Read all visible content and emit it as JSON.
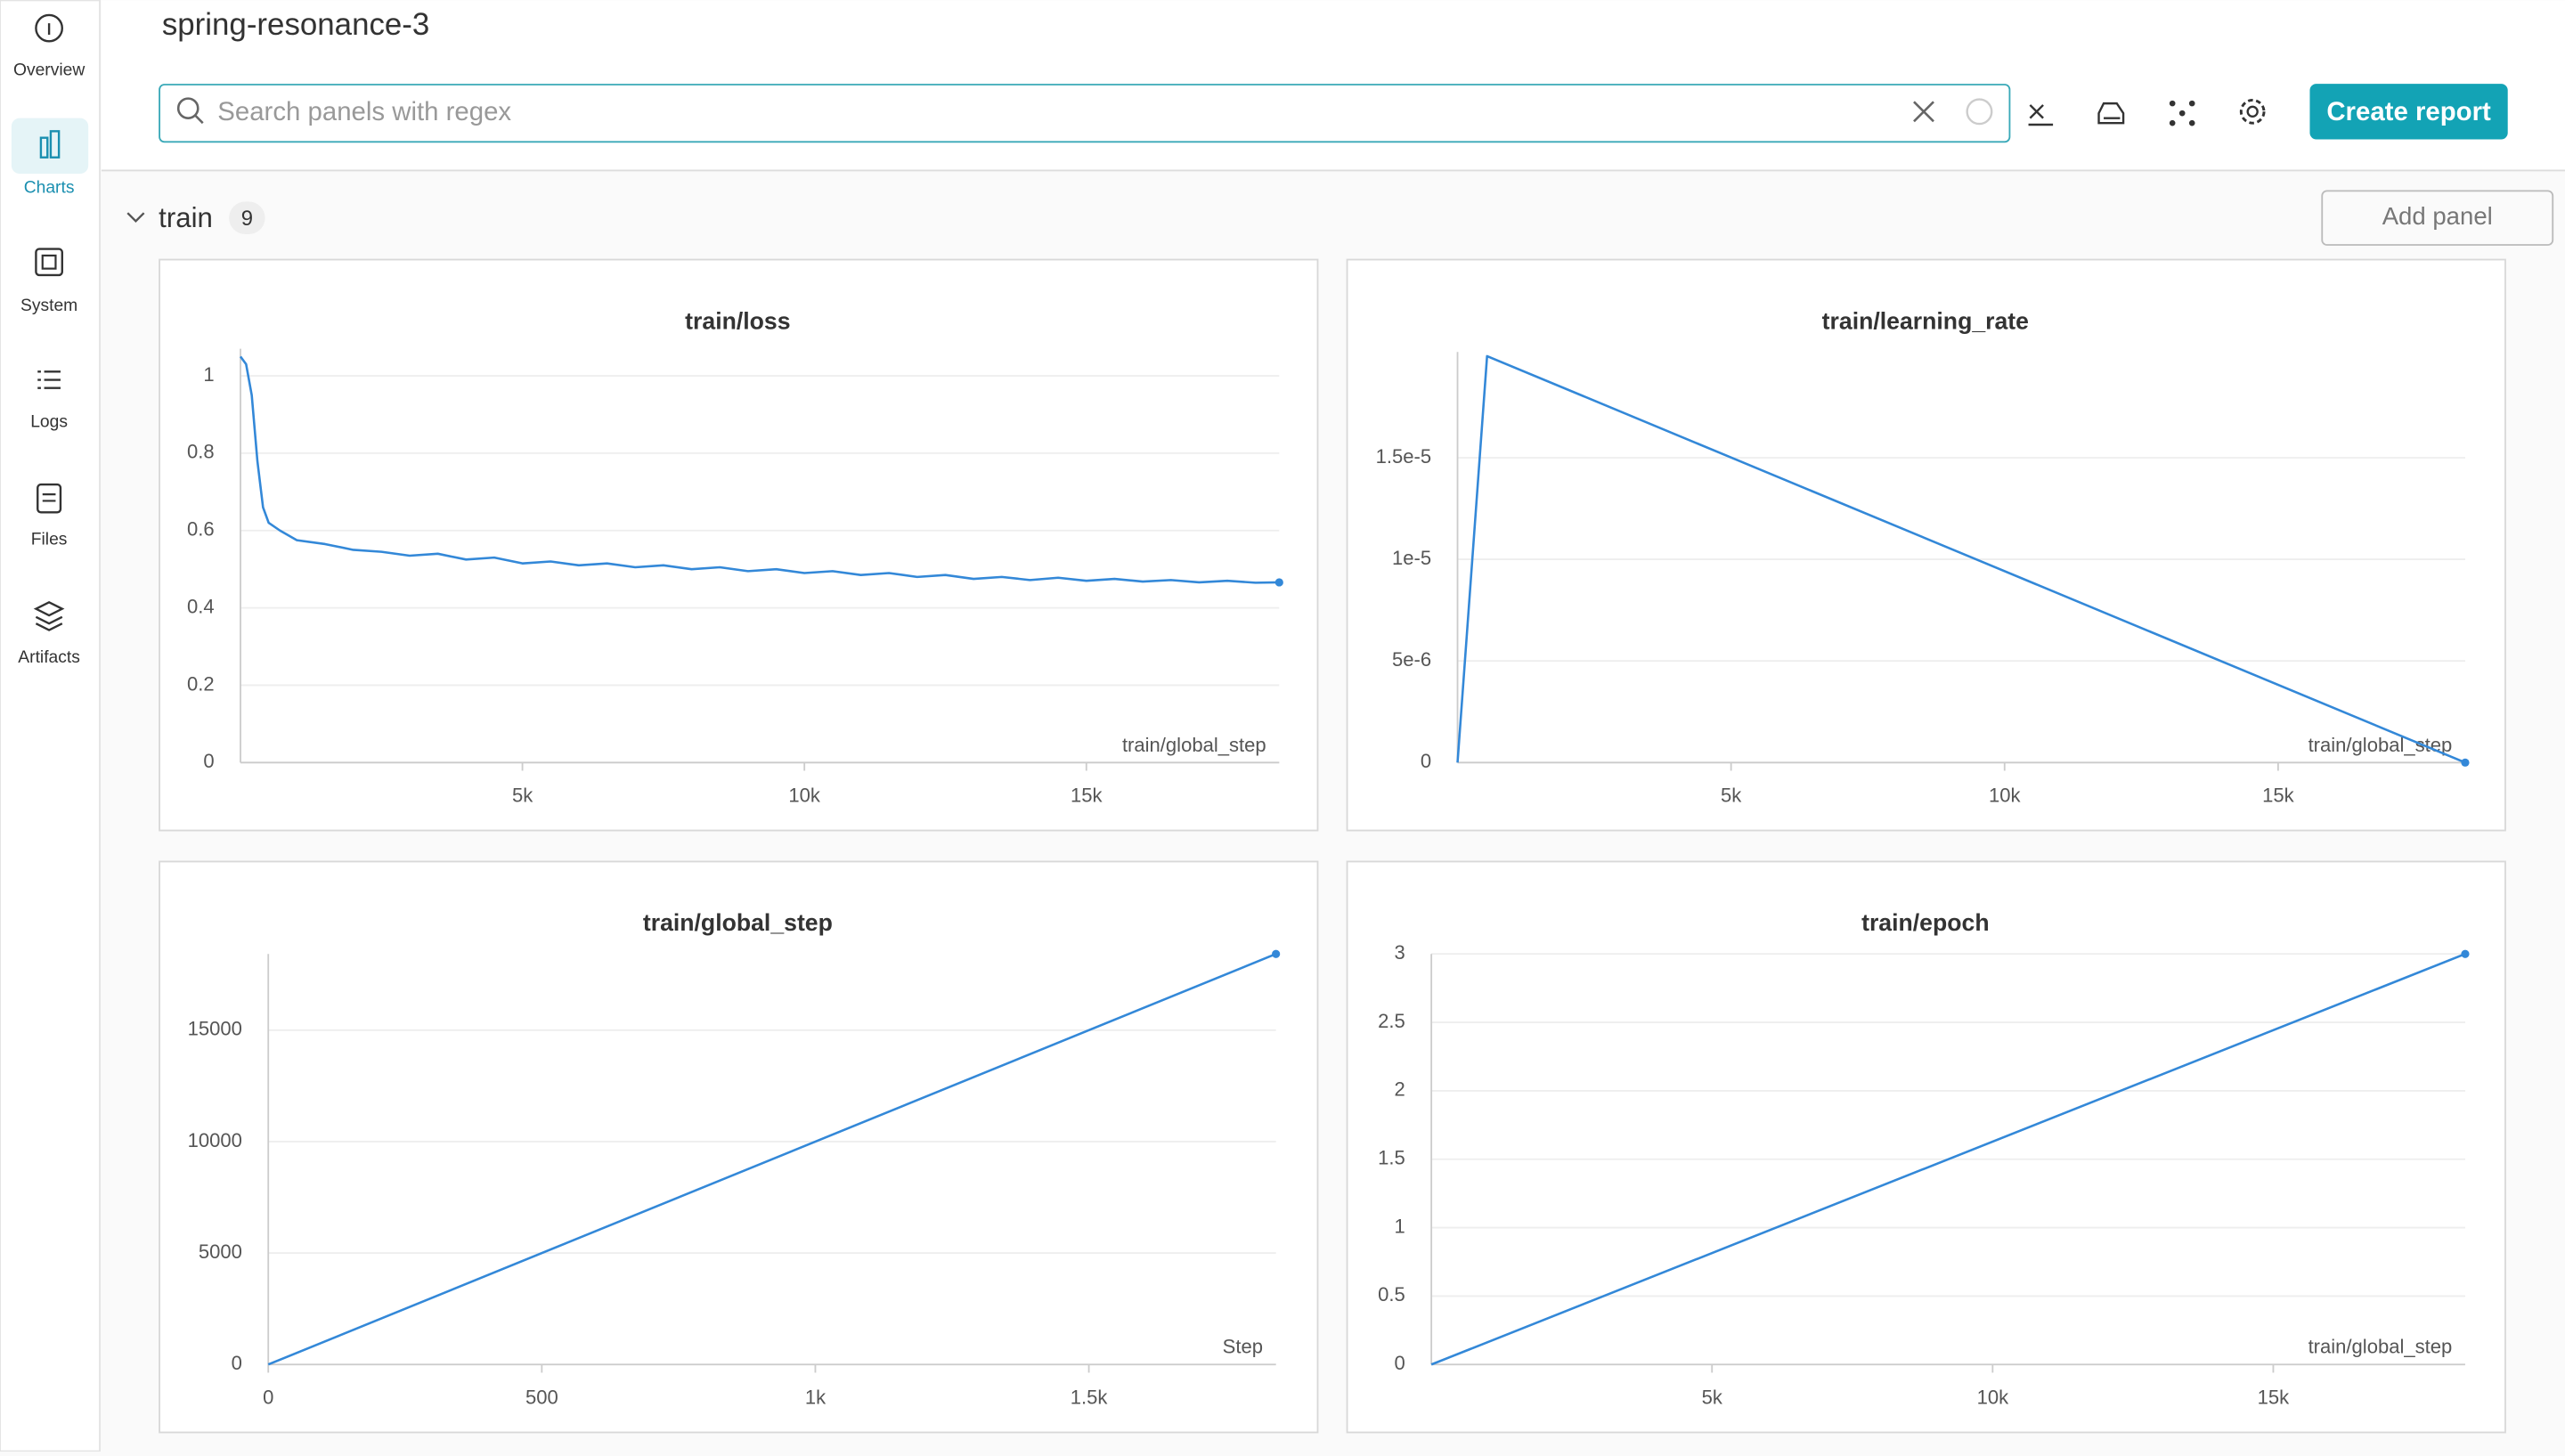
{
  "sidebar": {
    "items": [
      "Overview",
      "Charts",
      "System",
      "Logs",
      "Files",
      "Artifacts"
    ]
  },
  "header": {
    "title": "spring-resonance-3",
    "search_placeholder": "Search panels with regex",
    "button": "Create report"
  },
  "section": {
    "name": "train",
    "count": "9",
    "button": "Add panel"
  },
  "chart_data": [
    {
      "type": "line",
      "title": "train/loss",
      "x_label": "train/global_step",
      "color": "#3388d8",
      "grid": true,
      "x": [
        0,
        100,
        200,
        300,
        400,
        500,
        700,
        1000,
        1500,
        2000,
        2500,
        3000,
        3500,
        4000,
        4500,
        5000,
        5500,
        6000,
        6500,
        7000,
        7500,
        8000,
        8500,
        9000,
        9500,
        10000,
        10500,
        11000,
        11500,
        12000,
        12500,
        13000,
        13500,
        14000,
        14500,
        15000,
        15500,
        16000,
        16500,
        17000,
        17500,
        18000,
        18420
      ],
      "values": [
        1.05,
        1.03,
        0.95,
        0.78,
        0.66,
        0.62,
        0.6,
        0.575,
        0.565,
        0.55,
        0.545,
        0.535,
        0.54,
        0.525,
        0.53,
        0.515,
        0.52,
        0.51,
        0.515,
        0.505,
        0.51,
        0.5,
        0.505,
        0.495,
        0.5,
        0.49,
        0.495,
        0.485,
        0.49,
        0.48,
        0.485,
        0.475,
        0.48,
        0.472,
        0.478,
        0.47,
        0.475,
        0.468,
        0.472,
        0.466,
        0.47,
        0.465,
        0.466
      ],
      "xlim": [
        0,
        18420
      ],
      "ylim": [
        0,
        1.07
      ],
      "xticks": [
        {
          "value": 5000,
          "label": "5k"
        },
        {
          "value": 10000,
          "label": "10k"
        },
        {
          "value": 15000,
          "label": "15k"
        }
      ],
      "yticks": [
        0,
        0.2,
        0.4,
        0.6,
        0.8,
        1
      ]
    },
    {
      "type": "line",
      "title": "train/learning_rate",
      "x_label": "train/global_step",
      "color": "#3388d8",
      "grid": true,
      "x": [
        0,
        540,
        18420
      ],
      "values": [
        0,
        2e-05,
        0
      ],
      "xlim": [
        0,
        18420
      ],
      "ylim": [
        0,
        2.02e-05
      ],
      "xticks": [
        {
          "value": 5000,
          "label": "5k"
        },
        {
          "value": 10000,
          "label": "10k"
        },
        {
          "value": 15000,
          "label": "15k"
        }
      ],
      "yticks": [
        0,
        {
          "value": 5e-06,
          "label": "5e-6"
        },
        {
          "value": 1e-05,
          "label": "1e-5"
        },
        {
          "value": 1.5e-05,
          "label": "1.5e-5"
        }
      ]
    },
    {
      "type": "line",
      "title": "train/global_step",
      "x_label": "Step",
      "color": "#3388d8",
      "grid": true,
      "x": [
        0,
        1842
      ],
      "values": [
        0,
        18420
      ],
      "xlim": [
        0,
        1842
      ],
      "ylim": [
        0,
        18420
      ],
      "xticks": [
        0,
        500,
        {
          "value": 1000,
          "label": "1k"
        },
        {
          "value": 1500,
          "label": "1.5k"
        }
      ],
      "yticks": [
        0,
        5000,
        10000,
        15000
      ]
    },
    {
      "type": "line",
      "title": "train/epoch",
      "x_label": "train/global_step",
      "color": "#3388d8",
      "grid": true,
      "x": [
        0,
        18420
      ],
      "values": [
        0,
        3
      ],
      "xlim": [
        0,
        18420
      ],
      "ylim": [
        0,
        3
      ],
      "xticks": [
        {
          "value": 5000,
          "label": "5k"
        },
        {
          "value": 10000,
          "label": "10k"
        },
        {
          "value": 15000,
          "label": "15k"
        }
      ],
      "yticks": [
        0,
        0.5,
        1,
        1.5,
        2,
        2.5,
        3
      ]
    }
  ]
}
